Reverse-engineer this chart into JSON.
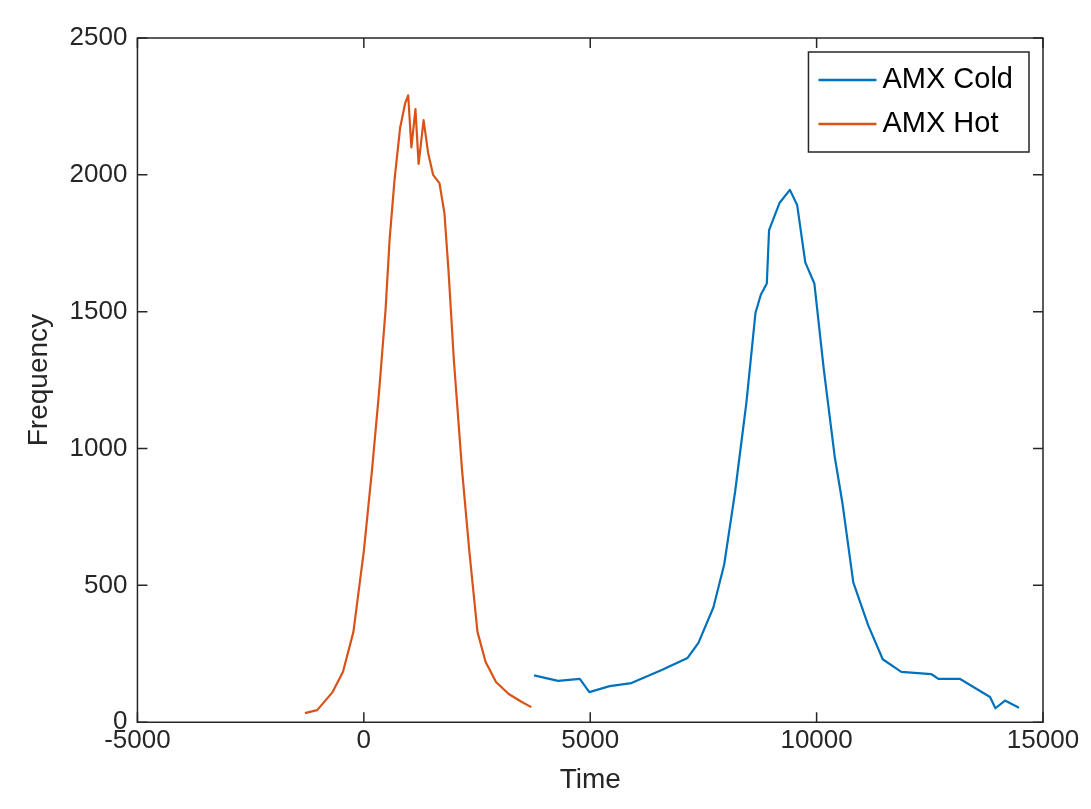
{
  "chart_data": {
    "type": "line",
    "xlabel": "Time",
    "ylabel": "Frequency",
    "xlim": [
      -5000,
      15000
    ],
    "xticks": [
      -5000,
      0,
      5000,
      10000,
      15000
    ],
    "ylim": [
      0,
      2500
    ],
    "yticks": [
      0,
      500,
      1000,
      1500,
      2000,
      2500
    ],
    "grid": false,
    "legend": "top right",
    "line_style": "solid",
    "series": [
      {
        "name": "AMX Cold",
        "color": "#0072bd",
        "x": [
          3760,
          4290,
          4770,
          4980,
          5430,
          5910,
          6580,
          7150,
          7390,
          7720,
          7960,
          8200,
          8450,
          8650,
          8770,
          8900,
          8950,
          9180,
          9410,
          9570,
          9750,
          9950,
          10160,
          10400,
          10570,
          10810,
          11140,
          11460,
          11870,
          12530,
          12690,
          13170,
          13830,
          13950,
          14160,
          14470
        ],
        "values": [
          171,
          151,
          158,
          110,
          132,
          143,
          191,
          235,
          290,
          419,
          577,
          842,
          1169,
          1496,
          1563,
          1603,
          1798,
          1897,
          1945,
          1890,
          1680,
          1603,
          1287,
          970,
          801,
          511,
          354,
          230,
          184,
          176,
          158,
          158,
          92,
          51,
          79,
          53
        ]
      },
      {
        "name": "AMX Hot",
        "color": "#d95319",
        "x": [
          -1300,
          -1030,
          -690,
          -460,
          -230,
          0,
          180,
          340,
          480,
          570,
          680,
          800,
          910,
          980,
          1050,
          1140,
          1210,
          1320,
          1420,
          1530,
          1670,
          1780,
          1870,
          1990,
          2170,
          2330,
          2510,
          2690,
          2920,
          3200,
          3490,
          3700
        ],
        "values": [
          33,
          44,
          110,
          184,
          330,
          625,
          920,
          1213,
          1507,
          1765,
          1985,
          2170,
          2260,
          2290,
          2100,
          2240,
          2040,
          2200,
          2080,
          2000,
          1970,
          1860,
          1650,
          1320,
          920,
          625,
          330,
          220,
          147,
          103,
          74,
          55
        ]
      }
    ]
  }
}
